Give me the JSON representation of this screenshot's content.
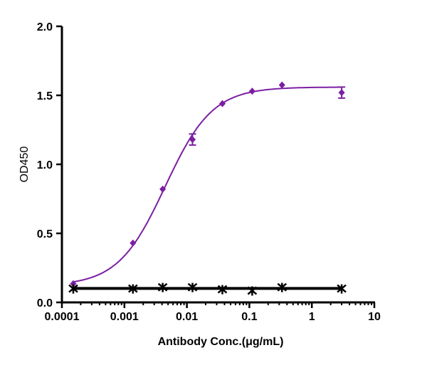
{
  "chart_data": {
    "type": "scatter",
    "title": "",
    "xlabel": "Antibody Conc.(μg/mL)",
    "ylabel": "OD450",
    "xscale": "log",
    "xlim": [
      0.0001,
      10
    ],
    "ylim": [
      0,
      2.0
    ],
    "xticks": [
      "0.0001",
      "0.001",
      "0.01",
      "0.1",
      "1",
      "10"
    ],
    "yticks": [
      "0.0",
      "0.5",
      "1.0",
      "1.5",
      "2.0"
    ],
    "grid": false,
    "legend": "none",
    "series": [
      {
        "color": "#7b1fa2",
        "marker": "diamond",
        "fit": "4PL",
        "x": [
          0.000152,
          0.00137,
          0.0041,
          0.0123,
          0.037,
          0.111,
          0.333,
          3
        ],
        "y": [
          0.135,
          0.43,
          0.82,
          1.18,
          1.44,
          1.53,
          1.575,
          1.52
        ],
        "error": [
          0,
          0,
          0,
          0.04,
          0,
          0,
          0,
          0.04
        ],
        "fit_params": {
          "bottom": 0.12,
          "top": 1.56,
          "ec50": 0.0045,
          "hill": 1.15
        }
      },
      {
        "color": "#000000",
        "marker": "star",
        "fit": "flat",
        "x": [
          0.000152,
          0.00137,
          0.0041,
          0.0123,
          0.037,
          0.111,
          0.333,
          3
        ],
        "y": [
          0.1,
          0.1,
          0.11,
          0.11,
          0.095,
          0.085,
          0.11,
          0.1
        ],
        "error": [
          0,
          0,
          0,
          0,
          0,
          0,
          0,
          0
        ]
      }
    ]
  }
}
